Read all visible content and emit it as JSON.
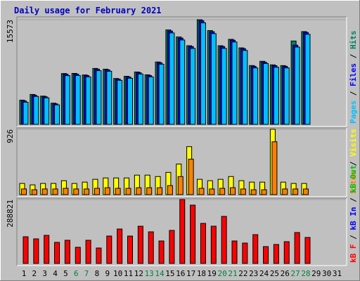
{
  "chart_data": {
    "type": "bar",
    "title": "Daily usage for February 2021",
    "categories": [
      "1",
      "2",
      "3",
      "4",
      "5",
      "6",
      "7",
      "8",
      "9",
      "10",
      "11",
      "12",
      "13",
      "14",
      "15",
      "16",
      "17",
      "18",
      "19",
      "20",
      "21",
      "22",
      "23",
      "24",
      "25",
      "26",
      "27",
      "28",
      "29",
      "30",
      "31"
    ],
    "category_colors": [
      "#000000",
      "#000000",
      "#000000",
      "#000000",
      "#000000",
      "#008040",
      "#008040",
      "#000000",
      "#000000",
      "#000000",
      "#000000",
      "#000000",
      "#008040",
      "#008040",
      "#000000",
      "#000000",
      "#000000",
      "#000000",
      "#000000",
      "#008040",
      "#008040",
      "#000000",
      "#000000",
      "#000000",
      "#000000",
      "#000000",
      "#008040",
      "#008040",
      "#000000",
      "#000000",
      "#000000"
    ],
    "legend_separator": " / ",
    "panels": [
      {
        "ylim": [
          0,
          15573
        ],
        "yticks": [
          15573
        ],
        "series": [
          {
            "name": "Pages",
            "color": "#00c0ff",
            "values": [
              3300,
              4150,
              3950,
              2900,
              7250,
              7270,
              7060,
              7990,
              7900,
              6550,
              6860,
              7480,
              7060,
              8950,
              13600,
              12550,
              11300,
              15100,
              13500,
              11300,
              12250,
              11000,
              8400,
              9050,
              8500,
              8400,
              11500,
              13400,
              null,
              null,
              null
            ]
          },
          {
            "name": "Files",
            "color": "#0000ff",
            "values": [
              3472,
              4313,
              4103,
              3051,
              7469,
              7469,
              7259,
              8206,
              8100,
              6733,
              7048,
              7680,
              7259,
              9152,
              13886,
              12834,
              11572,
              15420,
              13781,
              11572,
              12519,
              11256,
              8626,
              9258,
              8732,
              8626,
              11782,
              13676,
              null,
              null,
              null
            ]
          },
          {
            "name": "Hits",
            "color": "#00805c",
            "values": [
              3600,
              4450,
              4200,
              3150,
              7560,
              7580,
              7350,
              8320,
              8210,
              6820,
              7150,
              7790,
              7370,
              9280,
              14050,
              13000,
              11700,
              15573,
              13950,
              11700,
              12650,
              11380,
              8750,
              9380,
              8850,
              8740,
              12400,
              13800,
              null,
              null,
              null
            ]
          }
        ]
      },
      {
        "ylim": [
          0,
          926
        ],
        "yticks": [
          926
        ],
        "series": [
          {
            "name": "Sites",
            "color": "#ff8000",
            "values": [
              80,
              69,
              80,
              80,
              89,
              80,
              80,
              89,
              98,
              89,
              89,
              98,
              98,
              98,
              128,
              256,
              502,
              89,
              80,
              89,
              98,
              80,
              69,
              69,
              749,
              80,
              80,
              80,
              null,
              null,
              null
            ]
          },
          {
            "name": "Visits",
            "color": "#ffff00",
            "values": [
              158,
              138,
              158,
              158,
              197,
              158,
              177,
              217,
              236,
              236,
              236,
              276,
              276,
              256,
              315,
              433,
              680,
              217,
              197,
              217,
              256,
              197,
              177,
              177,
              926,
              177,
              158,
              158,
              null,
              null,
              null
            ]
          }
        ]
      },
      {
        "ylim": [
          0,
          288821
        ],
        "yticks": [
          288821
        ],
        "series": [
          {
            "name": "kB F",
            "color": "#ff0000",
            "values": [
              120612,
              111090,
              126960,
              95220,
              104742,
              73002,
              104742,
              69828,
              123786,
              155526,
              123786,
              168222,
              142830,
              101568,
              149178,
              288821,
              263442,
              180918,
              168222,
              212658,
              101568,
              92046,
              130134,
              76176,
              85698,
              98394,
              139656,
              117438,
              null,
              null,
              null
            ]
          },
          {
            "name": "kB In",
            "color": "#0000ff",
            "values": [
              0,
              0,
              0,
              0,
              0,
              0,
              0,
              0,
              0,
              0,
              0,
              0,
              0,
              0,
              0,
              0,
              0,
              0,
              0,
              0,
              0,
              0,
              0,
              0,
              0,
              0,
              0,
              0,
              null,
              null,
              null
            ]
          },
          {
            "name": "kB Out",
            "color": "#00c000",
            "values": [
              0,
              0,
              0,
              0,
              0,
              0,
              0,
              0,
              0,
              0,
              0,
              0,
              0,
              0,
              0,
              0,
              0,
              0,
              0,
              0,
              0,
              0,
              0,
              0,
              0,
              0,
              0,
              0,
              null,
              null,
              null
            ]
          }
        ]
      }
    ]
  }
}
